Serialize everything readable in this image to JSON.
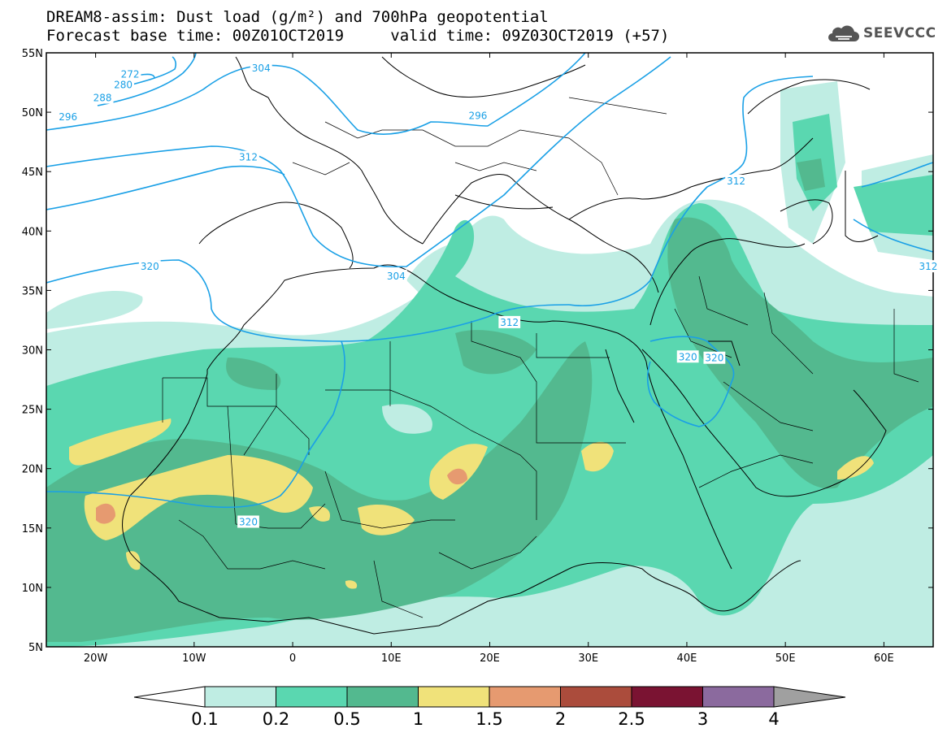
{
  "header": {
    "line1": "DREAM8-assim: Dust load (g/m²) and 700hPa geopotential",
    "line2_left": "Forecast base time: 00Z01OCT2019",
    "line2_right": "valid time: 09Z03OCT2019 (+57)",
    "logo_text": "SEEVCCC",
    "logo_icon": "cloud-icon"
  },
  "map": {
    "lat_labels": [
      "55N",
      "50N",
      "45N",
      "40N",
      "35N",
      "30N",
      "25N",
      "20N",
      "15N",
      "10N",
      "5N"
    ],
    "lon_labels": [
      "20W",
      "10W",
      "0",
      "10E",
      "20E",
      "30E",
      "40E",
      "50E",
      "60E"
    ],
    "contour_labels": [
      {
        "text": "272",
        "lon": -16.5,
        "lat": 53.2
      },
      {
        "text": "280",
        "lon": -17.2,
        "lat": 52.3
      },
      {
        "text": "288",
        "lon": -19.3,
        "lat": 51.2
      },
      {
        "text": "296",
        "lon": -22.8,
        "lat": 49.6
      },
      {
        "text": "304",
        "lon": -3.2,
        "lat": 53.7
      },
      {
        "text": "296",
        "lon": 18.8,
        "lat": 49.7
      },
      {
        "text": "312",
        "lon": -4.5,
        "lat": 46.2
      },
      {
        "text": "312",
        "lon": 45.0,
        "lat": 44.2
      },
      {
        "text": "312",
        "lon": 64.5,
        "lat": 37.0
      },
      {
        "text": "320",
        "lon": -14.5,
        "lat": 37.0
      },
      {
        "text": "304",
        "lon": 10.5,
        "lat": 36.2
      },
      {
        "text": "312",
        "lon": 22.0,
        "lat": 32.3
      },
      {
        "text": "320",
        "lon": 40.1,
        "lat": 29.4
      },
      {
        "text": "320",
        "lon": 42.8,
        "lat": 29.3
      },
      {
        "text": "320",
        "lon": -4.5,
        "lat": 15.5
      }
    ]
  },
  "colorbar": {
    "tick_labels": [
      "0.1",
      "0.2",
      "0.5",
      "1",
      "1.5",
      "2",
      "2.5",
      "3",
      "4"
    ],
    "colors": [
      "#bfede3",
      "#5ad7b0",
      "#53b98f",
      "#f0e27a",
      "#e69a70",
      "#ab4c3c",
      "#7a1332",
      "#8b6a9e"
    ]
  }
}
